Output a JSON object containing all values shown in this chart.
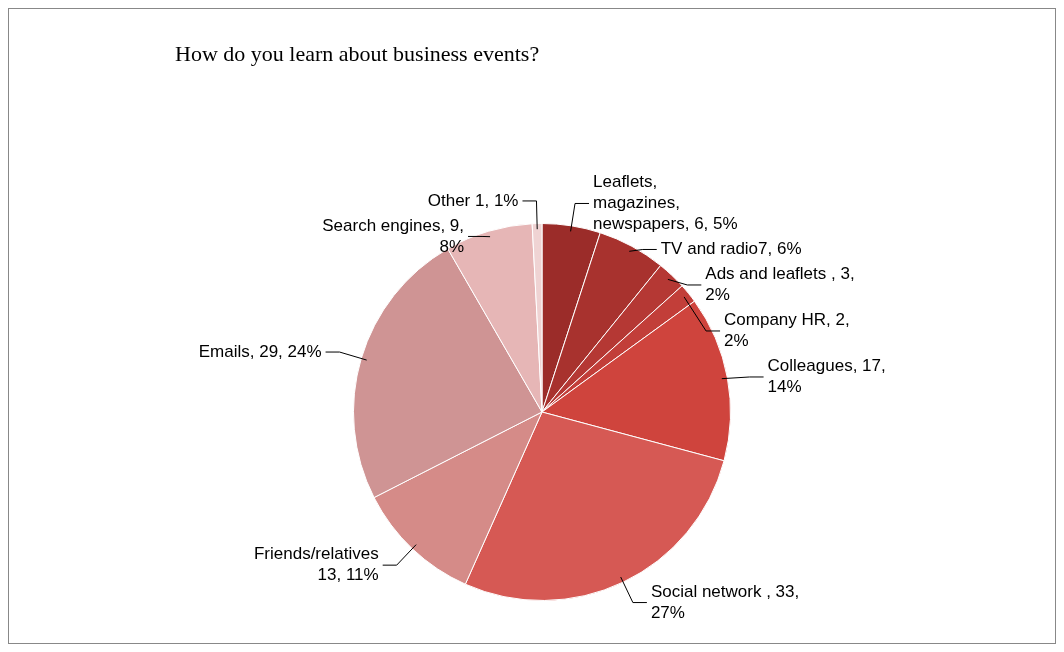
{
  "chart_data": {
    "type": "pie",
    "title": "How do you learn about business events?",
    "categories": [
      "Leaflets, magazines, newspapers, 6, 5%",
      "TV and radio7, 6%",
      "Ads and leaflets , 3, 2%",
      "Company HR, 2, 2%",
      "Colleagues, 17, 14%",
      "Social network , 33, 27%",
      "Friends/relatives 13, 11%",
      "Emails, 29, 24%",
      "Search engines, 9, 8%",
      "Other 1, 1%"
    ],
    "values": [
      6,
      7,
      3,
      2,
      17,
      33,
      13,
      29,
      9,
      1
    ],
    "colors": [
      "#9b2c29",
      "#a8322e",
      "#b53834",
      "#c23e39",
      "#cf443d",
      "#d65954",
      "#d58b88",
      "#cf9494",
      "#e6b6b6",
      "#efd3d3"
    ]
  }
}
